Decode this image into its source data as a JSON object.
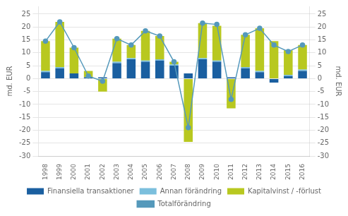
{
  "chart_data": {
    "type": "bar",
    "categories": [
      1998,
      1999,
      2000,
      2001,
      2002,
      2003,
      2004,
      2005,
      2006,
      2007,
      2008,
      2009,
      2010,
      2011,
      2012,
      2013,
      2014,
      2015,
      2016
    ],
    "series": [
      {
        "name": "Finansiella transaktioner",
        "color": "#1a5fa0",
        "values": [
          2.5,
          4.0,
          2.0,
          0.5,
          0.5,
          6.0,
          7.5,
          6.5,
          7.0,
          5.0,
          2.0,
          7.5,
          6.5,
          0.5,
          4.0,
          2.5,
          -1.5,
          1.0,
          3.0
        ]
      },
      {
        "name": "Annan förändring",
        "color": "#7bbfdd",
        "values": [
          0.5,
          0.5,
          0.0,
          0.0,
          0.0,
          0.5,
          0.5,
          0.5,
          0.5,
          0.5,
          0.0,
          0.5,
          0.5,
          0.0,
          0.5,
          0.5,
          0.0,
          0.5,
          0.5
        ]
      },
      {
        "name": "Kapitalvinst / -förlust",
        "color": "#b8c820",
        "values": [
          11.5,
          17.5,
          10.0,
          2.5,
          -5.0,
          9.0,
          5.0,
          11.5,
          9.0,
          1.0,
          -24.5,
          13.5,
          13.5,
          -11.5,
          12.5,
          16.5,
          14.5,
          9.5,
          9.5
        ]
      },
      {
        "name": "Totalförändring",
        "type": "line",
        "color": "#5599bb",
        "marker": "circle",
        "values": [
          14.5,
          22.0,
          12.0,
          1.0,
          -1.0,
          15.5,
          13.0,
          18.5,
          16.5,
          6.5,
          -19.0,
          21.5,
          21.0,
          -8.0,
          17.0,
          19.5,
          13.0,
          10.5,
          13.0
        ]
      }
    ],
    "stacked": true,
    "ylabel": "md. EUR",
    "ylim": [
      -30,
      28
    ],
    "yticks": [
      -30,
      -25,
      -20,
      -15,
      -10,
      -5,
      0,
      5,
      10,
      15,
      20,
      25
    ],
    "y2label": "md. EUR",
    "y2lim": [
      -30,
      28
    ],
    "y2ticks": [
      -30,
      -25,
      -20,
      -15,
      -10,
      -5,
      0,
      5,
      10,
      15,
      20,
      25
    ],
    "grid": true,
    "legend": "bottom"
  }
}
